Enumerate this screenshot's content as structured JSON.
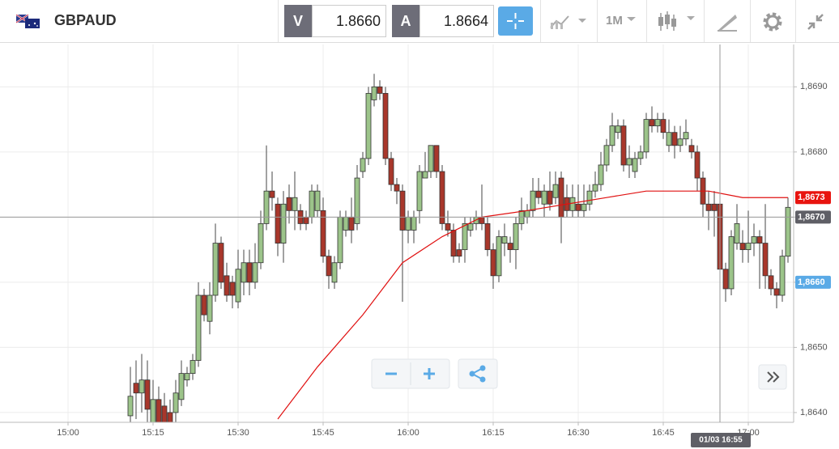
{
  "header": {
    "symbol": "GBPAUD",
    "bid_tag": "V",
    "bid": "1.8660",
    "ask_tag": "A",
    "ask": "1.8664",
    "timeframe": "1M"
  },
  "chart_data": {
    "type": "candlestick",
    "up_color": "#9cc48a",
    "down_color": "#a8372b",
    "ma_color": "#e01010",
    "grid": true,
    "xlim": [
      "14:48",
      "17:08"
    ],
    "xticks": [
      "15:00",
      "15:15",
      "15:30",
      "15:45",
      "16:00",
      "16:15",
      "16:30",
      "16:45",
      "17:00"
    ],
    "ylim": [
      1.86385,
      1.86965
    ],
    "yticks": [
      {
        "value": 1.864,
        "label": "1,8640"
      },
      {
        "value": 1.865,
        "label": "1,8650"
      },
      {
        "value": 1.866,
        "label": "1,8660"
      },
      {
        "value": 1.867,
        "label": "1,8670"
      },
      {
        "value": 1.868,
        "label": "1,8680"
      },
      {
        "value": 1.869,
        "label": "1,8690"
      }
    ],
    "x": [
      "15:11",
      "15:12",
      "15:13",
      "15:14",
      "15:15",
      "15:16",
      "15:17",
      "15:18",
      "15:19",
      "15:20",
      "15:21",
      "15:22",
      "15:23",
      "15:24",
      "15:25",
      "15:26",
      "15:27",
      "15:28",
      "15:29",
      "15:30",
      "15:31",
      "15:32",
      "15:33",
      "15:34",
      "15:35",
      "15:36",
      "15:37",
      "15:38",
      "15:39",
      "15:40",
      "15:41",
      "15:42",
      "15:43",
      "15:44",
      "15:45",
      "15:46",
      "15:47",
      "15:48",
      "15:49",
      "15:50",
      "15:51",
      "15:52",
      "15:53",
      "15:54",
      "15:55",
      "15:56",
      "15:57",
      "15:58",
      "15:59",
      "16:00",
      "16:01",
      "16:02",
      "16:03",
      "16:04",
      "16:05",
      "16:06",
      "16:07",
      "16:08",
      "16:09",
      "16:10",
      "16:11",
      "16:12",
      "16:13",
      "16:14",
      "16:15",
      "16:16",
      "16:17",
      "16:18",
      "16:19",
      "16:20",
      "16:21",
      "16:22",
      "16:23",
      "16:24",
      "16:25",
      "16:26",
      "16:27",
      "16:28",
      "16:29",
      "16:30",
      "16:31",
      "16:32",
      "16:33",
      "16:34",
      "16:35",
      "16:36",
      "16:37",
      "16:38",
      "16:39",
      "16:40",
      "16:41",
      "16:42",
      "16:43",
      "16:44",
      "16:45",
      "16:46",
      "16:47",
      "16:48",
      "16:49",
      "16:50",
      "16:51",
      "16:52",
      "16:53",
      "16:54",
      "16:55",
      "16:56",
      "16:57",
      "16:58",
      "16:59",
      "17:00",
      "17:01",
      "17:02",
      "17:03",
      "17:04",
      "17:05",
      "17:06",
      "17:07"
    ],
    "open": [
      1.86395,
      1.86445,
      1.8643,
      1.8645,
      1.86385,
      1.8642,
      1.8641,
      1.864,
      1.864,
      1.8642,
      1.8645,
      1.8646,
      1.8648,
      1.8658,
      1.8654,
      1.8658,
      1.8666,
      1.8661,
      1.866,
      1.8657,
      1.866,
      1.8663,
      1.866,
      1.8663,
      1.8669,
      1.8674,
      1.8672,
      1.8666,
      1.8673,
      1.8671,
      1.8671,
      1.867,
      1.867,
      1.8671,
      1.8671,
      1.8664,
      1.866,
      1.8663,
      1.8668,
      1.867,
      1.8669,
      1.8677,
      1.8679,
      1.8688,
      1.869,
      1.8689,
      1.8679,
      1.8675,
      1.8674,
      1.8668,
      1.8668,
      1.8671,
      1.8676,
      1.8677,
      1.8681,
      1.8677,
      1.8669,
      1.8668,
      1.8665,
      1.8665,
      1.8668,
      1.8669,
      1.867,
      1.8669,
      1.8665,
      1.8661,
      1.8666,
      1.8666,
      1.8665,
      1.8669,
      1.867,
      1.8671,
      1.8674,
      1.8672,
      1.8674,
      1.8673,
      1.8676,
      1.8673,
      1.8671,
      1.8672,
      1.8671,
      1.8672,
      1.8674,
      1.8675,
      1.8678,
      1.8681,
      1.8683,
      1.8684,
      1.8678,
      1.8677,
      1.8679,
      1.868,
      1.8685,
      1.8684,
      1.8685,
      1.8681,
      1.8683,
      1.8681,
      1.8682,
      1.8681,
      1.868,
      1.8676,
      1.8672,
      1.8672,
      1.8672,
      1.8662,
      1.8659,
      1.8666,
      1.8666,
      1.8665,
      1.8666,
      1.8667,
      1.8666,
      1.8661,
      1.8659,
      1.8658,
      1.8664
    ],
    "high": [
      1.8647,
      1.8648,
      1.8649,
      1.8648,
      1.8645,
      1.8644,
      1.8643,
      1.8642,
      1.8645,
      1.8648,
      1.8647,
      1.8649,
      1.866,
      1.8659,
      1.866,
      1.8669,
      1.8667,
      1.8663,
      1.8661,
      1.8665,
      1.8665,
      1.8665,
      1.8666,
      1.8671,
      1.8681,
      1.8677,
      1.8673,
      1.8674,
      1.8675,
      1.8677,
      1.8672,
      1.8671,
      1.8675,
      1.8675,
      1.8673,
      1.8665,
      1.8664,
      1.8671,
      1.8671,
      1.8673,
      1.8678,
      1.868,
      1.869,
      1.8692,
      1.8691,
      1.869,
      1.868,
      1.8676,
      1.8675,
      1.8671,
      1.8671,
      1.8678,
      1.868,
      1.8681,
      1.8681,
      1.8678,
      1.8671,
      1.8669,
      1.8666,
      1.867,
      1.867,
      1.8671,
      1.8675,
      1.867,
      1.8666,
      1.8668,
      1.8669,
      1.8667,
      1.867,
      1.8673,
      1.8672,
      1.8676,
      1.8676,
      1.8675,
      1.8677,
      1.8677,
      1.8677,
      1.8675,
      1.8675,
      1.8675,
      1.8675,
      1.8675,
      1.8677,
      1.868,
      1.8682,
      1.8686,
      1.8685,
      1.8685,
      1.8681,
      1.868,
      1.8681,
      1.8686,
      1.8687,
      1.8686,
      1.8686,
      1.8685,
      1.8684,
      1.8684,
      1.8685,
      1.8682,
      1.8681,
      1.8677,
      1.8674,
      1.8674,
      1.8673,
      1.8663,
      1.8668,
      1.8672,
      1.8668,
      1.8671,
      1.8669,
      1.8668,
      1.8672,
      1.8662,
      1.866,
      1.8665,
      1.8673
    ],
    "low": [
      1.8636,
      1.8639,
      1.864,
      1.8638,
      1.8636,
      1.8636,
      1.8637,
      1.8637,
      1.8638,
      1.8641,
      1.8644,
      1.8645,
      1.8647,
      1.8654,
      1.8652,
      1.8657,
      1.8659,
      1.8657,
      1.8656,
      1.8656,
      1.8658,
      1.8658,
      1.8659,
      1.8662,
      1.8668,
      1.8671,
      1.8664,
      1.8663,
      1.8669,
      1.8668,
      1.8668,
      1.8668,
      1.8669,
      1.867,
      1.8663,
      1.8659,
      1.8659,
      1.8662,
      1.8667,
      1.8666,
      1.8668,
      1.8676,
      1.8678,
      1.8687,
      1.8688,
      1.8678,
      1.8674,
      1.8672,
      1.8657,
      1.8666,
      1.8666,
      1.8669,
      1.8676,
      1.8676,
      1.8676,
      1.8668,
      1.8667,
      1.8663,
      1.8663,
      1.8663,
      1.8667,
      1.8668,
      1.8668,
      1.8664,
      1.8659,
      1.866,
      1.8664,
      1.8663,
      1.8662,
      1.8668,
      1.8669,
      1.867,
      1.8672,
      1.867,
      1.8671,
      1.8672,
      1.8666,
      1.867,
      1.867,
      1.867,
      1.867,
      1.8671,
      1.8673,
      1.8674,
      1.8677,
      1.868,
      1.8682,
      1.8677,
      1.8676,
      1.8676,
      1.8678,
      1.8679,
      1.8683,
      1.8683,
      1.8682,
      1.868,
      1.8679,
      1.868,
      1.8681,
      1.8679,
      1.8674,
      1.867,
      1.8668,
      1.8667,
      1.8661,
      1.8657,
      1.8658,
      1.8665,
      1.8663,
      1.8663,
      1.8664,
      1.8659,
      1.8659,
      1.8658,
      1.8656,
      1.8657,
      1.8663
    ],
    "close": [
      1.86425,
      1.8643,
      1.8645,
      1.86405,
      1.8642,
      1.86385,
      1.8638,
      1.8638,
      1.8643,
      1.8646,
      1.8646,
      1.8648,
      1.8658,
      1.8655,
      1.8658,
      1.8666,
      1.866,
      1.8658,
      1.8658,
      1.8662,
      1.8663,
      1.866,
      1.8663,
      1.8669,
      1.8674,
      1.8673,
      1.8666,
      1.8672,
      1.8671,
      1.8673,
      1.8669,
      1.8669,
      1.8674,
      1.8674,
      1.8664,
      1.8661,
      1.8663,
      1.867,
      1.867,
      1.8668,
      1.8676,
      1.8679,
      1.8689,
      1.869,
      1.8689,
      1.8679,
      1.8675,
      1.8674,
      1.8668,
      1.867,
      1.867,
      1.8677,
      1.8677,
      1.8681,
      1.8677,
      1.8669,
      1.8668,
      1.8664,
      1.8664,
      1.8669,
      1.8669,
      1.867,
      1.8669,
      1.8665,
      1.8661,
      1.8667,
      1.8667,
      1.8665,
      1.8669,
      1.8671,
      1.8671,
      1.8674,
      1.8673,
      1.8674,
      1.8672,
      1.8675,
      1.867,
      1.8671,
      1.8673,
      1.8671,
      1.8672,
      1.8674,
      1.8675,
      1.8678,
      1.8681,
      1.8684,
      1.8684,
      1.8678,
      1.8679,
      1.8679,
      1.868,
      1.8685,
      1.8684,
      1.8685,
      1.8683,
      1.8683,
      1.8681,
      1.8682,
      1.8683,
      1.868,
      1.8676,
      1.8672,
      1.8671,
      1.8671,
      1.8662,
      1.8659,
      1.8667,
      1.8669,
      1.8665,
      1.8666,
      1.8667,
      1.8666,
      1.8661,
      1.8659,
      1.8658,
      1.8664,
      1.86715
    ],
    "ma": {
      "x": [
        "15:37",
        "15:44",
        "15:52",
        "15:59",
        "16:06",
        "16:13",
        "16:21",
        "16:28",
        "16:35",
        "16:42",
        "16:50",
        "16:53",
        "16:59",
        "17:07"
      ],
      "values": [
        1.8639,
        1.8647,
        1.8655,
        1.8663,
        1.8667,
        1.867,
        1.8671,
        1.8672,
        1.8673,
        1.8674,
        1.8674,
        1.8674,
        1.8673,
        1.8673
      ]
    },
    "markers": [
      {
        "value": 1.8673,
        "label": "1,8673",
        "color": "#e8140f"
      },
      {
        "value": 1.867,
        "label": "1,8670",
        "color": "#5f5f66"
      },
      {
        "value": 1.866,
        "label": "1,8660",
        "color": "#5aaae6"
      }
    ],
    "crosshair": {
      "x": "16:55",
      "y": 1.867,
      "x_label": "01/03 16:55"
    }
  }
}
